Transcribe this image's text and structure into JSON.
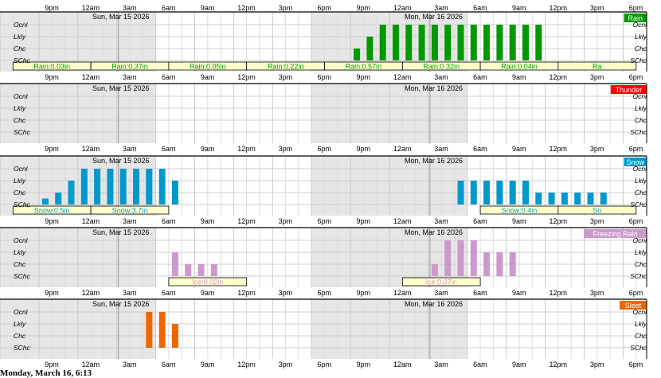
{
  "chart_data": [
    {
      "type": "bar",
      "title": "Rain",
      "color": "#009900",
      "levels": [
        "Ocnl",
        "Lkly",
        "Chc",
        "SChc"
      ],
      "time_ticks": [
        "9pm",
        "12am",
        "3am",
        "6am",
        "9am",
        "12pm",
        "3pm",
        "6pm",
        "9pm",
        "12am",
        "3am",
        "6am",
        "9am",
        "12pm",
        "3pm",
        "6pm"
      ],
      "day_labels": [
        "Sun, Mar 15 2026",
        "Mon, Mar 16 2026"
      ],
      "hours": [
        10,
        11,
        12,
        13,
        14,
        15,
        16,
        17,
        18,
        19,
        20,
        21,
        22,
        23,
        24,
        25,
        26,
        27,
        28,
        29,
        30,
        31,
        32,
        33,
        34,
        35,
        36,
        37,
        38,
        39,
        40,
        41,
        42,
        43,
        44,
        45,
        46,
        47,
        48
      ],
      "values": [
        0,
        0,
        0,
        0,
        0,
        0,
        0,
        0,
        0,
        0,
        0,
        0,
        0,
        0,
        0,
        0,
        0,
        0,
        0,
        0,
        1,
        2,
        3,
        3,
        3,
        3,
        3,
        3,
        3,
        3,
        3,
        3,
        3,
        3,
        3,
        0,
        0,
        0,
        0
      ],
      "amounts": [
        {
          "label": "Rain:0.03in",
          "start": 4,
          "end": 10
        },
        {
          "label": "Rain:0.37in",
          "start": 10,
          "end": 16
        },
        {
          "label": "Rain:0.05in",
          "start": 16,
          "end": 22
        },
        {
          "label": "Rain:0.22in",
          "start": 22,
          "end": 28
        },
        {
          "label": "Rain:0.57in",
          "start": 28,
          "end": 34
        },
        {
          "label": "Rain:0.32in",
          "start": 34,
          "end": 40
        },
        {
          "label": "Rain:0.04in",
          "start": 40,
          "end": 46
        },
        {
          "label": "Ra",
          "start": 46,
          "end": 52
        }
      ]
    },
    {
      "type": "bar",
      "title": "Thunder",
      "color": "#ff0000",
      "levels": [
        "Ocnl",
        "Lkly",
        "Chc",
        "SChc"
      ],
      "time_ticks": [
        "9pm",
        "12am",
        "3am",
        "6am",
        "9am",
        "12pm",
        "3pm",
        "6pm",
        "9pm",
        "12am",
        "3am",
        "6am",
        "9am",
        "12pm",
        "3pm",
        "6pm"
      ],
      "day_labels": [
        "Sun, Mar 15 2026",
        "Mon, Mar 16 2026"
      ],
      "hours": [],
      "values": [],
      "amounts": []
    },
    {
      "type": "bar",
      "title": "Snow",
      "color": "#0099cc",
      "levels": [
        "Ocnl",
        "Lkly",
        "Chc",
        "SChc"
      ],
      "time_ticks": [
        "9pm",
        "12am",
        "3am",
        "6am",
        "9am",
        "12pm",
        "3pm",
        "6pm",
        "9pm",
        "12am",
        "3am",
        "6am",
        "9am",
        "12pm",
        "3pm",
        "6pm"
      ],
      "day_labels": [
        "Sun, Mar 15 2026",
        "Mon, Mar 16 2026"
      ],
      "hours": [
        6,
        7,
        8,
        9,
        10,
        11,
        12,
        13,
        14,
        15,
        16,
        38,
        39,
        40,
        41,
        42,
        43,
        44,
        45,
        46,
        47,
        48,
        49
      ],
      "values": [
        0.5,
        1,
        2,
        3,
        3,
        3,
        3,
        3,
        3,
        3,
        2,
        2,
        2,
        2,
        2,
        2,
        2,
        1,
        1,
        1,
        1,
        1,
        1
      ],
      "amounts": [
        {
          "label": "Snow:0.5in",
          "start": 4,
          "end": 10
        },
        {
          "label": "Snow:3.7in",
          "start": 10,
          "end": 16
        },
        {
          "label": "Snow:0.4in",
          "start": 40,
          "end": 46
        },
        {
          "label": "Sn",
          "start": 46,
          "end": 52
        }
      ]
    },
    {
      "type": "bar",
      "title": "Freezing Rain",
      "color": "#cc99cc",
      "levels": [
        "Ocnl",
        "Lkly",
        "Chc",
        "SChc"
      ],
      "time_ticks": [
        "9pm",
        "12am",
        "3am",
        "6am",
        "9am",
        "12pm",
        "3pm",
        "6pm",
        "9pm",
        "12am",
        "3am",
        "6am",
        "9am",
        "12pm",
        "3pm",
        "6pm"
      ],
      "day_labels": [
        "Sun, Mar 15 2026",
        "Mon, Mar 16 2026"
      ],
      "hours": [
        16,
        17,
        18,
        19,
        20,
        21,
        22,
        36,
        37,
        38,
        39,
        40,
        41,
        42
      ],
      "values": [
        2,
        1,
        1,
        1,
        0,
        0,
        0,
        1,
        3,
        3,
        3,
        2,
        2,
        2
      ],
      "amounts": [
        {
          "label": "Ice:0.02in",
          "start": 16,
          "end": 22
        },
        {
          "label": "Ice:0.07in",
          "start": 34,
          "end": 40
        }
      ]
    },
    {
      "type": "bar",
      "title": "Sleet",
      "color": "#ee6600",
      "levels": [
        "Ocnl",
        "Lkly",
        "Chc",
        "SChc"
      ],
      "time_ticks": [
        "9pm",
        "12am",
        "3am",
        "6am",
        "9am",
        "12pm",
        "3pm",
        "6pm",
        "9pm",
        "12am",
        "3am",
        "6am",
        "9am",
        "12pm",
        "3pm",
        "6pm"
      ],
      "day_labels": [
        "Sun, Mar 15 2026",
        "Mon, Mar 16 2026"
      ],
      "hours": [
        14,
        15,
        16
      ],
      "values": [
        3,
        3,
        2
      ],
      "amounts": []
    }
  ],
  "footer": "Monday, March 16, 6:13"
}
